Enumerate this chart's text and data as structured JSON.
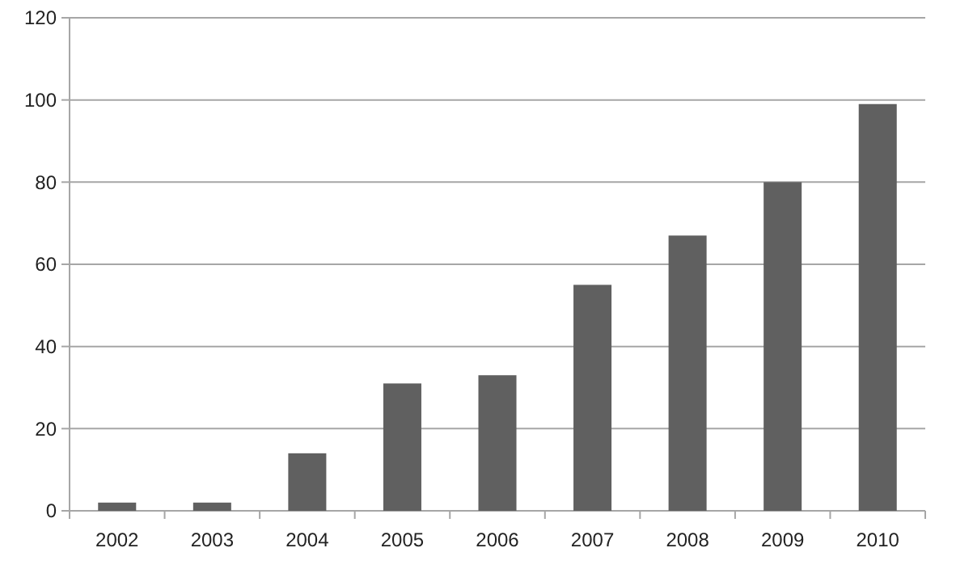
{
  "chart_data": {
    "type": "bar",
    "categories": [
      "2002",
      "2003",
      "2004",
      "2005",
      "2006",
      "2007",
      "2008",
      "2009",
      "2010"
    ],
    "values": [
      2,
      2,
      14,
      31,
      33,
      55,
      67,
      80,
      99
    ],
    "color": "#606060",
    "ylim": [
      0,
      120
    ],
    "yticks": [
      0,
      20,
      40,
      60,
      80,
      100,
      120
    ],
    "grid": "y"
  }
}
